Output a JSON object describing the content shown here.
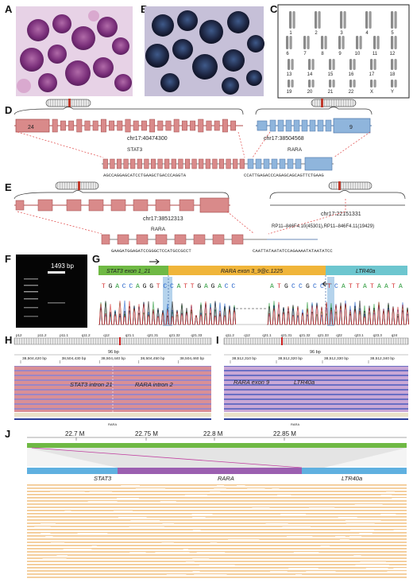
{
  "panels": {
    "A": "A",
    "B": "B",
    "C": "C",
    "D": "D",
    "E": "E",
    "F": "F",
    "G": "G",
    "H": "H",
    "I": "I",
    "J": "J"
  },
  "karyotype": {
    "row1": [
      "1",
      "2",
      "3",
      "4",
      "5"
    ],
    "row2": [
      "6",
      "7",
      "8",
      "9",
      "10",
      "11",
      "12"
    ],
    "row3": [
      "13",
      "14",
      "15",
      "16",
      "17",
      "18"
    ],
    "row4": [
      "19",
      "20",
      "21",
      "22",
      "X",
      "Y"
    ]
  },
  "panelD": {
    "stat3_first_exon": "24",
    "stat3_coord": "chr17:40474300",
    "stat3_label": "STAT3",
    "rara_coord": "chr17:38504568",
    "rara_label": "RARA",
    "rara_last_exon": "9",
    "fusion_seq_left": "AGCCAGGAGCATCCTGAAGCTGACCCAGGTA",
    "fusion_seq_right": "CCATTGAGACCCAGAGCAGCAGTTCTGAAG"
  },
  "panelE": {
    "rara_coord": "chr17:38512313",
    "intergenic_coord": "chr17:22151331",
    "rp11_label": "RP11–846F4.10(45301),RP11–846F4.11(19429)",
    "rara_label": "RARA",
    "fusion_seq_left": "GAAGATGGAGATCCGGGCTCCATGCCGCCT",
    "fusion_seq_right": "CAATTATAATATCCAGAAAATATAATATCC"
  },
  "panelF": {
    "band_label": "1493 bp"
  },
  "panelG": {
    "seg1": "STAT3 exon 1_21",
    "seg2": "RARA exon 3_9@c.1225",
    "seg3": "LTR40a",
    "seq_left": "TGACCAGGTCCATTGAGACC",
    "seq_right": "ATGCCGCCTCATTATAATA"
  },
  "panelH": {
    "cyto": [
      "p12",
      "p11.2",
      "p11.1",
      "q11.2",
      "q12",
      "q21.1",
      "q21.31",
      "q21.32",
      "q21.33"
    ],
    "scale": "96 bp",
    "ticks": [
      "38,504,420 bp",
      "38,504,430 bp",
      "38,504,440 bp",
      "38,504,450 bp",
      "38,504,460 bp"
    ],
    "left_label": "STAT3 intron 21",
    "right_label": "RARA intron 2",
    "gene": "RARA"
  },
  "panelI": {
    "cyto": [
      "q11.2",
      "q12",
      "q21.1",
      "q21.31",
      "q21.32",
      "q21.33",
      "q22",
      "q23.1",
      "q23.3",
      "q24"
    ],
    "scale": "96 bp",
    "ticks": [
      "38,512,310 bp",
      "38,512,320 bp",
      "38,512,330 bp",
      "38,512,340 bp"
    ],
    "left_label": "RARA exon 9",
    "right_label": "LTR40a",
    "gene": "RARA"
  },
  "panelJ": {
    "ticks": [
      "22.7 M",
      "22.75 M",
      "22.8 M",
      "22.85 M"
    ],
    "genes": [
      "STAT3",
      "RARA",
      "LTR40a"
    ]
  },
  "colors": {
    "stat3": "#d98a8a",
    "rara": "#8fb5dc",
    "green": "#6fb944",
    "orange": "#f0b53a",
    "teal": "#6dc6cf",
    "purple": "#9b5fb0"
  }
}
